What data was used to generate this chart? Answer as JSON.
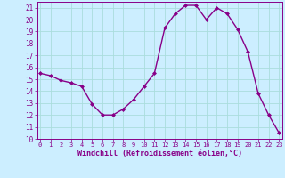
{
  "x": [
    0,
    1,
    2,
    3,
    4,
    5,
    6,
    7,
    8,
    9,
    10,
    11,
    12,
    13,
    14,
    15,
    16,
    17,
    18,
    19,
    20,
    21,
    22,
    23
  ],
  "y": [
    15.5,
    15.3,
    14.9,
    14.7,
    14.4,
    12.9,
    12.0,
    12.0,
    12.5,
    13.3,
    14.4,
    15.5,
    19.3,
    20.5,
    21.2,
    21.2,
    20.0,
    21.0,
    20.5,
    19.2,
    17.3,
    13.8,
    12.0,
    10.5
  ],
  "line_color": "#880088",
  "marker": "D",
  "markersize": 2.0,
  "linewidth": 1.0,
  "xlim": [
    -0.3,
    23.3
  ],
  "ylim": [
    10,
    21.5
  ],
  "yticks": [
    10,
    11,
    12,
    13,
    14,
    15,
    16,
    17,
    18,
    19,
    20,
    21
  ],
  "xticks": [
    0,
    1,
    2,
    3,
    4,
    5,
    6,
    7,
    8,
    9,
    10,
    11,
    12,
    13,
    14,
    15,
    16,
    17,
    18,
    19,
    20,
    21,
    22,
    23
  ],
  "xlabel": "Windchill (Refroidissement éolien,°C)",
  "bg_color": "#cceeff",
  "grid_color": "#aadddd",
  "tick_color": "#880088",
  "label_color": "#880088"
}
